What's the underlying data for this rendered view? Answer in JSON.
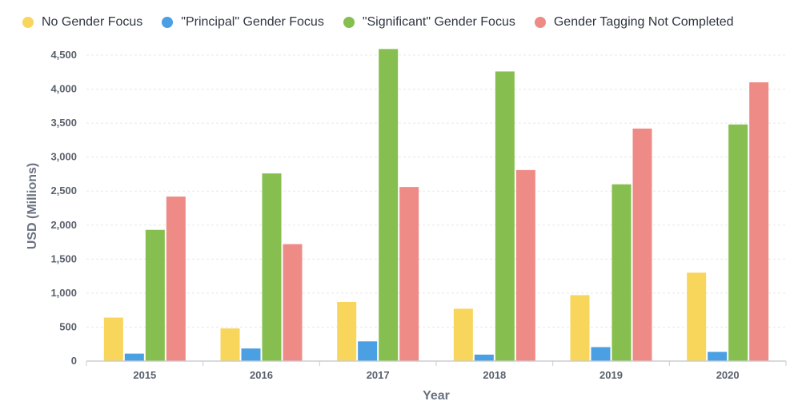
{
  "chart_data": {
    "type": "bar",
    "title": "",
    "xlabel": "Year",
    "ylabel": "USD (Millions)",
    "categories": [
      "2015",
      "2016",
      "2017",
      "2018",
      "2019",
      "2020"
    ],
    "ylim": [
      0,
      4700
    ],
    "yticks": [
      0,
      500,
      1000,
      1500,
      2000,
      2500,
      3000,
      3500,
      4000,
      4500
    ],
    "ytick_labels": [
      "0",
      "500",
      "1,000",
      "1,500",
      "2,000",
      "2,500",
      "3,000",
      "3,500",
      "4,000",
      "4,500"
    ],
    "grid": true,
    "legend_position": "top-left",
    "series": [
      {
        "name": "No Gender Focus",
        "color": "#f8d55b",
        "values": [
          640,
          480,
          870,
          770,
          970,
          1300
        ]
      },
      {
        "name": "\"Principal\" Gender Focus",
        "color": "#4b9fe3",
        "values": [
          110,
          185,
          290,
          95,
          205,
          135
        ]
      },
      {
        "name": "\"Significant\" Gender Focus",
        "color": "#86bf4f",
        "values": [
          1930,
          2760,
          4590,
          4260,
          2600,
          3480
        ]
      },
      {
        "name": "Gender Tagging Not Completed",
        "color": "#ef8b87",
        "values": [
          2420,
          1720,
          2560,
          2810,
          3420,
          4100
        ]
      }
    ]
  }
}
